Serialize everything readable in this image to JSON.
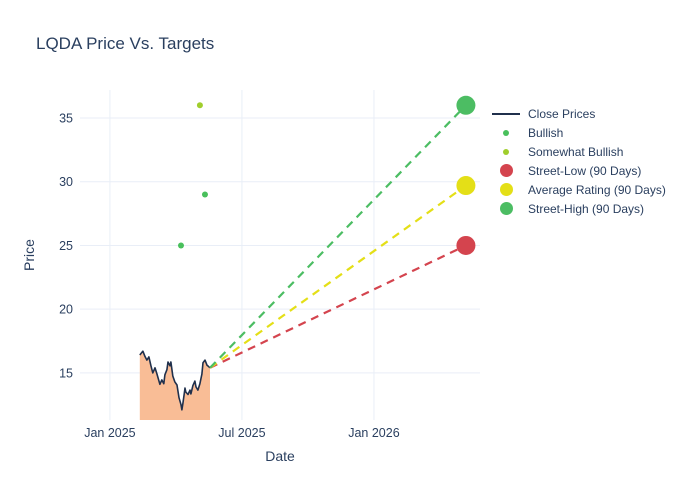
{
  "title": "LQDA Price Vs. Targets",
  "chart_data": {
    "type": "line",
    "title": "LQDA Price Vs. Targets",
    "xlabel": "Date",
    "ylabel": "Price",
    "x_unit_note": "x values are months since Jan 1 2025",
    "xlim": [
      -1.36,
      16.82
    ],
    "ylim": [
      11.3,
      37.2
    ],
    "grid": true,
    "legend_position": "right",
    "x_ticks": [
      {
        "x": 0,
        "label": "Jan 2025"
      },
      {
        "x": 6,
        "label": "Jul 2025"
      },
      {
        "x": 12,
        "label": "Jan 2026"
      }
    ],
    "y_ticks": [
      15,
      20,
      25,
      30,
      35
    ],
    "series": [
      {
        "name": "Close Prices",
        "kind": "line-area",
        "legend_marker": "line",
        "color": "#20304c",
        "fill_color": "#f9bd96",
        "points": [
          [
            1.36,
            16.4
          ],
          [
            1.45,
            16.6
          ],
          [
            1.5,
            16.7
          ],
          [
            1.59,
            16.3
          ],
          [
            1.68,
            16.0
          ],
          [
            1.77,
            16.25
          ],
          [
            1.86,
            15.6
          ],
          [
            1.95,
            15.0
          ],
          [
            2.05,
            15.4
          ],
          [
            2.14,
            14.9
          ],
          [
            2.27,
            14.1
          ],
          [
            2.36,
            14.45
          ],
          [
            2.45,
            14.15
          ],
          [
            2.5,
            14.85
          ],
          [
            2.59,
            15.25
          ],
          [
            2.64,
            15.85
          ],
          [
            2.73,
            15.55
          ],
          [
            2.77,
            15.85
          ],
          [
            2.86,
            14.75
          ],
          [
            2.95,
            14.3
          ],
          [
            3.05,
            14.05
          ],
          [
            3.14,
            13.05
          ],
          [
            3.23,
            12.5
          ],
          [
            3.27,
            12.1
          ],
          [
            3.32,
            12.65
          ],
          [
            3.41,
            13.8
          ],
          [
            3.45,
            13.5
          ],
          [
            3.55,
            13.3
          ],
          [
            3.64,
            13.65
          ],
          [
            3.68,
            13.35
          ],
          [
            3.77,
            14.0
          ],
          [
            3.86,
            14.35
          ],
          [
            3.91,
            13.9
          ],
          [
            4.0,
            13.65
          ],
          [
            4.09,
            14.15
          ],
          [
            4.18,
            14.9
          ],
          [
            4.23,
            15.8
          ],
          [
            4.32,
            16.0
          ],
          [
            4.41,
            15.6
          ],
          [
            4.45,
            15.55
          ],
          [
            4.55,
            15.4
          ]
        ]
      },
      {
        "name": "Bullish",
        "kind": "scatter",
        "legend_marker": "dot-small",
        "color": "#49c05c",
        "marker_radius": 3,
        "points": [
          [
            3.23,
            25
          ],
          [
            4.32,
            29
          ]
        ]
      },
      {
        "name": "Somewhat Bullish",
        "kind": "scatter",
        "legend_marker": "dot-small",
        "color": "#a0ce2c",
        "marker_radius": 3,
        "points": [
          [
            4.09,
            36
          ]
        ]
      },
      {
        "name": "Street-Low (90 Days)",
        "kind": "projection",
        "legend_marker": "dot-large",
        "color": "#d4444e",
        "start": [
          4.55,
          15.4
        ],
        "end": [
          16.18,
          25
        ],
        "target_value": 25,
        "marker_radius": 9.5
      },
      {
        "name": "Average Rating (90 Days)",
        "kind": "projection",
        "legend_marker": "dot-large",
        "color": "#e4df17",
        "start": [
          4.55,
          15.4
        ],
        "end": [
          16.18,
          29.7
        ],
        "target_value": 29.7,
        "marker_radius": 9.5
      },
      {
        "name": "Street-High (90 Days)",
        "kind": "projection",
        "legend_marker": "dot-large",
        "color": "#4cbd63",
        "start": [
          4.55,
          15.4
        ],
        "end": [
          16.18,
          36
        ],
        "target_value": 36,
        "marker_radius": 9.5
      }
    ]
  }
}
